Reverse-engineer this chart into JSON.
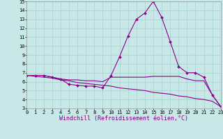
{
  "xlabel": "Windchill (Refroidissement éolien,°C)",
  "line1_x": [
    0,
    1,
    2,
    3,
    4,
    5,
    6,
    7,
    8,
    9,
    10,
    11,
    12,
    13,
    14,
    15,
    16,
    17,
    18,
    19,
    20,
    21,
    22,
    23
  ],
  "line1_y": [
    6.7,
    6.7,
    6.7,
    6.5,
    6.3,
    5.7,
    5.6,
    5.5,
    5.5,
    5.3,
    6.7,
    8.8,
    11.1,
    13.0,
    13.7,
    15.0,
    13.2,
    10.5,
    7.7,
    7.0,
    7.0,
    6.5,
    4.5,
    3.2
  ],
  "line2_x": [
    0,
    1,
    2,
    3,
    4,
    5,
    6,
    7,
    8,
    9,
    10,
    11,
    12,
    13,
    14,
    15,
    16,
    17,
    18,
    19,
    20,
    21,
    22,
    23
  ],
  "line2_y": [
    6.7,
    6.7,
    6.7,
    6.5,
    6.3,
    6.2,
    6.2,
    6.1,
    6.1,
    6.0,
    6.5,
    6.5,
    6.5,
    6.5,
    6.5,
    6.6,
    6.6,
    6.6,
    6.6,
    6.3,
    6.1,
    6.1,
    4.5,
    3.2
  ],
  "line3_x": [
    0,
    1,
    2,
    3,
    4,
    5,
    6,
    7,
    8,
    9,
    10,
    11,
    12,
    13,
    14,
    15,
    16,
    17,
    18,
    19,
    20,
    21,
    22,
    23
  ],
  "line3_y": [
    6.7,
    6.6,
    6.5,
    6.4,
    6.2,
    6.1,
    5.9,
    5.8,
    5.7,
    5.6,
    5.5,
    5.3,
    5.2,
    5.1,
    5.0,
    4.8,
    4.7,
    4.6,
    4.4,
    4.3,
    4.1,
    4.0,
    3.8,
    3.2
  ],
  "bg_color": "#c8e8e8",
  "grid_color": "#a0c8c8",
  "line_color": "#880088",
  "ylim_min": 3,
  "ylim_max": 15,
  "xlim_min": 0,
  "xlim_max": 23,
  "yticks": [
    3,
    4,
    5,
    6,
    7,
    8,
    9,
    10,
    11,
    12,
    13,
    14,
    15
  ],
  "xticks": [
    0,
    1,
    2,
    3,
    4,
    5,
    6,
    7,
    8,
    9,
    10,
    11,
    12,
    13,
    14,
    15,
    16,
    17,
    18,
    19,
    20,
    21,
    22,
    23
  ],
  "tick_fontsize": 5,
  "xlabel_fontsize": 6,
  "marker": "D",
  "markersize": 2.0,
  "linewidth": 0.8
}
